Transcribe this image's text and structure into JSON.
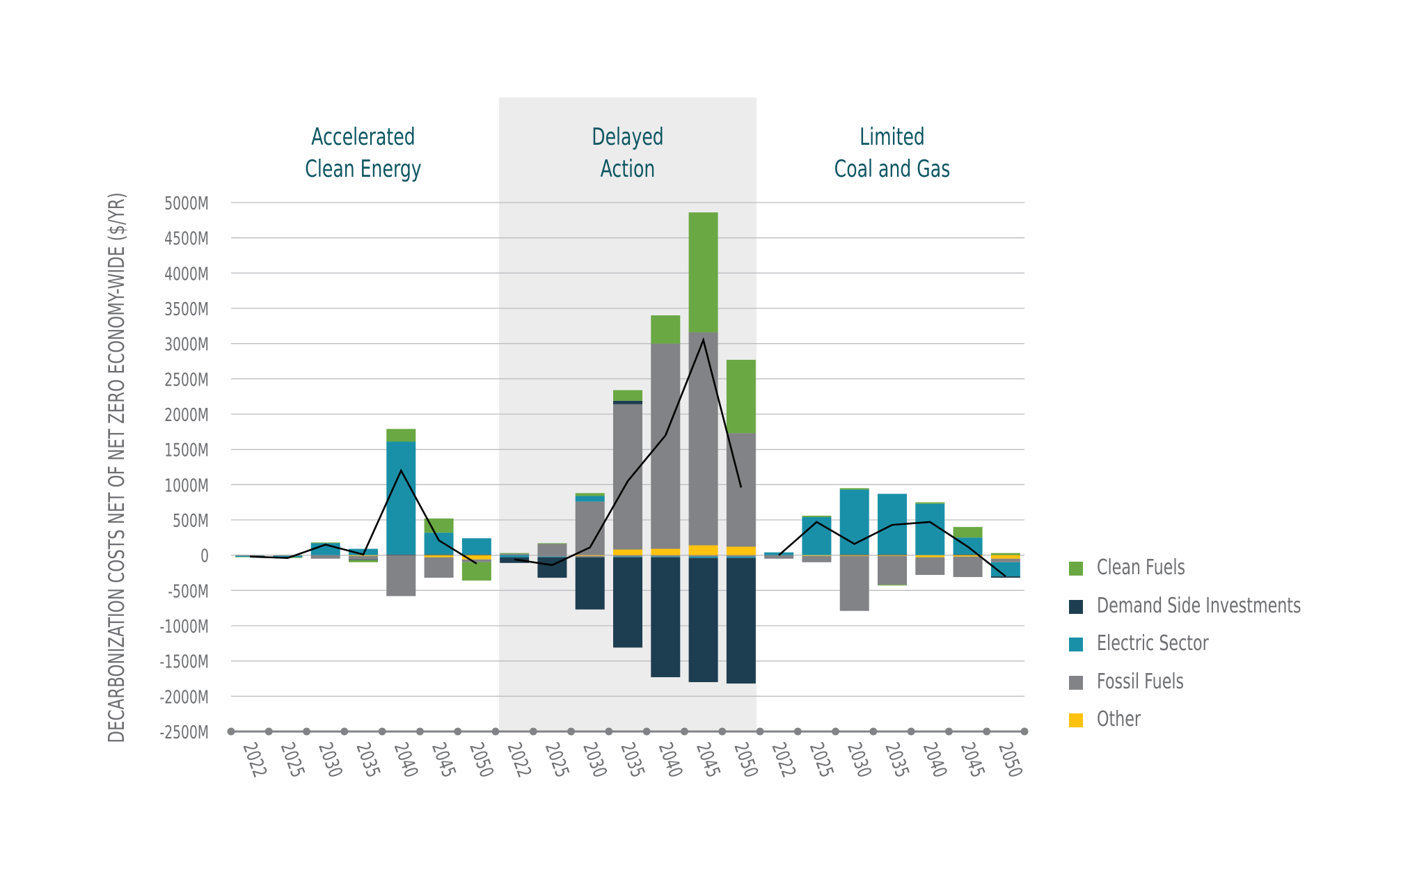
{
  "chart_data": {
    "type": "bar",
    "stacked": true,
    "ylabel": "DECARBONIZATION COSTS NET OF NET ZERO ECONOMY-WIDE ($/YR)",
    "ylim": [
      -2500,
      5000
    ],
    "yticks": [
      -2500,
      -2000,
      -1500,
      -1000,
      -500,
      0,
      500,
      1000,
      1500,
      2000,
      2500,
      3000,
      3500,
      4000,
      4500,
      5000
    ],
    "ytick_labels": [
      "-2500M",
      "-2000M",
      "-1500M",
      "-1000M",
      "-500M",
      "0",
      "500M",
      "1000M",
      "1500M",
      "2000M",
      "2500M",
      "3000M",
      "3500M",
      "4000M",
      "4500M",
      "5000M"
    ],
    "grid": true,
    "legend_position": "right",
    "series_colors": {
      "Clean Fuels": "#6aa843",
      "Demand Side Investments": "#1d3e50",
      "Electric Sector": "#1a90a8",
      "Fossil Fuels": "#828386",
      "Other": "#ffc20e",
      "Net": "#000000"
    },
    "series_names": [
      "Clean Fuels",
      "Demand Side Investments",
      "Electric Sector",
      "Fossil Fuels",
      "Other"
    ],
    "groups": [
      {
        "title_line1": "Accelerated",
        "title_line2": "Clean Energy",
        "shaded": false,
        "categories": [
          "2022",
          "2025",
          "2030",
          "2035",
          "2040",
          "2045",
          "2050"
        ],
        "bars": [
          {
            "Clean Fuels": [
              0,
              -5
            ],
            "Demand Side Investments": [
              0,
              0
            ],
            "Electric Sector": [
              0,
              -15
            ],
            "Fossil Fuels": [
              0,
              -10
            ],
            "Other": [
              0,
              0
            ]
          },
          {
            "Clean Fuels": [
              0,
              -10
            ],
            "Demand Side Investments": [
              0,
              0
            ],
            "Electric Sector": [
              0,
              -20
            ],
            "Fossil Fuels": [
              0,
              -10
            ],
            "Other": [
              0,
              0
            ]
          },
          {
            "Clean Fuels": [
              10,
              0
            ],
            "Demand Side Investments": [
              0,
              0
            ],
            "Electric Sector": [
              170,
              0
            ],
            "Fossil Fuels": [
              0,
              -50
            ],
            "Other": [
              0,
              0
            ]
          },
          {
            "Clean Fuels": [
              0,
              -30
            ],
            "Demand Side Investments": [
              0,
              -10
            ],
            "Electric Sector": [
              90,
              0
            ],
            "Fossil Fuels": [
              0,
              -50
            ],
            "Other": [
              0,
              -10
            ]
          },
          {
            "Clean Fuels": [
              180,
              0
            ],
            "Demand Side Investments": [
              10,
              0
            ],
            "Electric Sector": [
              1600,
              0
            ],
            "Fossil Fuels": [
              0,
              -580
            ],
            "Other": [
              0,
              0
            ]
          },
          {
            "Clean Fuels": [
              200,
              0
            ],
            "Demand Side Investments": [
              10,
              0
            ],
            "Electric Sector": [
              310,
              0
            ],
            "Fossil Fuels": [
              0,
              -290
            ],
            "Other": [
              0,
              -30
            ]
          },
          {
            "Clean Fuels": [
              0,
              -260
            ],
            "Demand Side Investments": [
              10,
              0
            ],
            "Electric Sector": [
              230,
              0
            ],
            "Fossil Fuels": [
              0,
              -40
            ],
            "Other": [
              0,
              -60
            ]
          }
        ],
        "net": [
          -20,
          -40,
          150,
          10,
          1200,
          210,
          -120
        ]
      },
      {
        "title_line1": "Delayed",
        "title_line2": "Action",
        "shaded": true,
        "categories": [
          "2022",
          "2025",
          "2030",
          "2035",
          "2040",
          "2045",
          "2050"
        ],
        "bars": [
          {
            "Clean Fuels": [
              10,
              0
            ],
            "Demand Side Investments": [
              0,
              -80
            ],
            "Electric Sector": [
              0,
              -30
            ],
            "Fossil Fuels": [
              20,
              0
            ],
            "Other": [
              0,
              0
            ]
          },
          {
            "Clean Fuels": [
              10,
              0
            ],
            "Demand Side Investments": [
              0,
              -290
            ],
            "Electric Sector": [
              0,
              -10
            ],
            "Fossil Fuels": [
              160,
              -20
            ],
            "Other": [
              0,
              0
            ]
          },
          {
            "Clean Fuels": [
              40,
              0
            ],
            "Demand Side Investments": [
              0,
              -740
            ],
            "Electric Sector": [
              80,
              0
            ],
            "Fossil Fuels": [
              760,
              -20
            ],
            "Other": [
              0,
              -10
            ]
          },
          {
            "Clean Fuels": [
              150,
              0
            ],
            "Demand Side Investments": [
              50,
              -1280
            ],
            "Electric Sector": [
              0,
              -10
            ],
            "Fossil Fuels": [
              2060,
              -20
            ],
            "Other": [
              80,
              0
            ]
          },
          {
            "Clean Fuels": [
              400,
              0
            ],
            "Demand Side Investments": [
              0,
              -1700
            ],
            "Electric Sector": [
              0,
              -10
            ],
            "Fossil Fuels": [
              2910,
              -20
            ],
            "Other": [
              90,
              0
            ]
          },
          {
            "Clean Fuels": [
              1700,
              0
            ],
            "Demand Side Investments": [
              0,
              -1760
            ],
            "Electric Sector": [
              0,
              -20
            ],
            "Fossil Fuels": [
              3020,
              -20
            ],
            "Other": [
              140,
              0
            ]
          },
          {
            "Clean Fuels": [
              1040,
              0
            ],
            "Demand Side Investments": [
              0,
              -1780
            ],
            "Electric Sector": [
              0,
              -20
            ],
            "Fossil Fuels": [
              1610,
              -20
            ],
            "Other": [
              120,
              0
            ]
          }
        ],
        "net": [
          -60,
          -140,
          110,
          1050,
          1700,
          3050,
          960
        ]
      },
      {
        "title_line1": "Limited",
        "title_line2": "Coal and Gas",
        "shaded": false,
        "categories": [
          "2022",
          "2025",
          "2030",
          "2035",
          "2040",
          "2045",
          "2050"
        ],
        "bars": [
          {
            "Clean Fuels": [
              0,
              0
            ],
            "Demand Side Investments": [
              0,
              0
            ],
            "Electric Sector": [
              40,
              0
            ],
            "Fossil Fuels": [
              0,
              -50
            ],
            "Other": [
              0,
              0
            ]
          },
          {
            "Clean Fuels": [
              20,
              0
            ],
            "Demand Side Investments": [
              0,
              0
            ],
            "Electric Sector": [
              540,
              0
            ],
            "Fossil Fuels": [
              0,
              -90
            ],
            "Other": [
              0,
              -10
            ]
          },
          {
            "Clean Fuels": [
              20,
              0
            ],
            "Demand Side Investments": [
              10,
              0
            ],
            "Electric Sector": [
              920,
              0
            ],
            "Fossil Fuels": [
              0,
              -780
            ],
            "Other": [
              0,
              -10
            ]
          },
          {
            "Clean Fuels": [
              0,
              -10
            ],
            "Demand Side Investments": [
              10,
              0
            ],
            "Electric Sector": [
              860,
              0
            ],
            "Fossil Fuels": [
              0,
              -410
            ],
            "Other": [
              0,
              -10
            ]
          },
          {
            "Clean Fuels": [
              20,
              0
            ],
            "Demand Side Investments": [
              0,
              0
            ],
            "Electric Sector": [
              730,
              0
            ],
            "Fossil Fuels": [
              0,
              -250
            ],
            "Other": [
              0,
              -30
            ]
          },
          {
            "Clean Fuels": [
              150,
              0
            ],
            "Demand Side Investments": [
              10,
              0
            ],
            "Electric Sector": [
              240,
              0
            ],
            "Fossil Fuels": [
              0,
              -290
            ],
            "Other": [
              0,
              -20
            ]
          },
          {
            "Clean Fuels": [
              30,
              0
            ],
            "Demand Side Investments": [
              0,
              -20
            ],
            "Electric Sector": [
              0,
              -200
            ],
            "Fossil Fuels": [
              0,
              -50
            ],
            "Other": [
              0,
              -50
            ]
          }
        ],
        "net": [
          0,
          470,
          160,
          430,
          470,
          120,
          -300
        ]
      }
    ]
  }
}
